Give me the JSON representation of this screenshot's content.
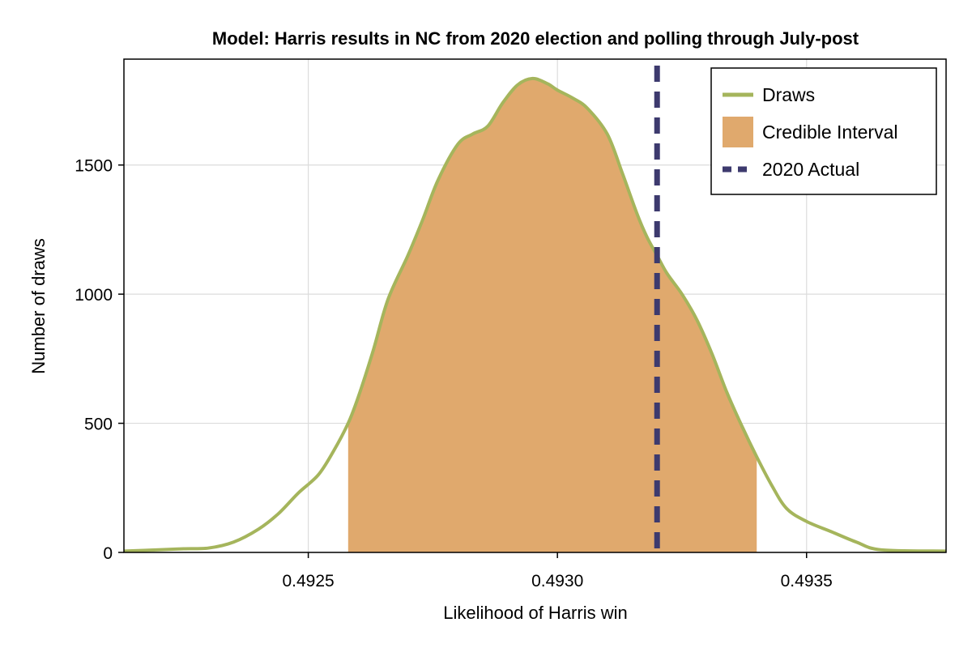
{
  "chart_data": {
    "type": "area",
    "title": "Model: Harris results in NC from 2020 election and polling through July-post",
    "xlabel": "Likelihood of Harris win",
    "ylabel": "Number of draws",
    "xlim": [
      0.49213,
      0.49378
    ],
    "ylim": [
      0,
      1910
    ],
    "xticks": [
      "0.4925",
      "0.4930",
      "0.4935"
    ],
    "xtick_values": [
      0.4925,
      0.493,
      0.4935
    ],
    "yticks": [
      "0",
      "500",
      "1000",
      "1500"
    ],
    "ytick_values": [
      0,
      500,
      1000,
      1500
    ],
    "grid": true,
    "legend_position": "top-right",
    "colors": {
      "draws_line": "#a5b55c",
      "credible_fill": "#e0a96d",
      "actual_line": "#3d3a6e"
    },
    "series": [
      {
        "name": "Draws",
        "kind": "line",
        "x": [
          0.49213,
          0.4922,
          0.49225,
          0.4923,
          0.49235,
          0.4924,
          0.49244,
          0.49248,
          0.49252,
          0.49255,
          0.49258,
          0.4926,
          0.49263,
          0.49266,
          0.4927,
          0.49273,
          0.49276,
          0.4928,
          0.49283,
          0.49286,
          0.49289,
          0.49292,
          0.49295,
          0.49298,
          0.493,
          0.49303,
          0.49306,
          0.4931,
          0.49313,
          0.49316,
          0.49318,
          0.4932,
          0.49322,
          0.49325,
          0.49328,
          0.49331,
          0.49334,
          0.49337,
          0.4934,
          0.49343,
          0.49346,
          0.4935,
          0.49355,
          0.4936,
          0.49365,
          0.49378
        ],
        "y": [
          5,
          10,
          14,
          17,
          40,
          90,
          150,
          230,
          300,
          390,
          500,
          600,
          780,
          980,
          1150,
          1290,
          1440,
          1580,
          1620,
          1650,
          1740,
          1810,
          1835,
          1815,
          1790,
          1760,
          1720,
          1620,
          1470,
          1310,
          1220,
          1150,
          1080,
          1000,
          900,
          770,
          620,
          490,
          370,
          260,
          170,
          120,
          80,
          40,
          10,
          5
        ]
      },
      {
        "name": "Credible Interval",
        "kind": "band",
        "from": 0.49258,
        "to": 0.4934
      },
      {
        "name": "2020 Actual",
        "kind": "vline",
        "x": 0.4932
      }
    ]
  }
}
